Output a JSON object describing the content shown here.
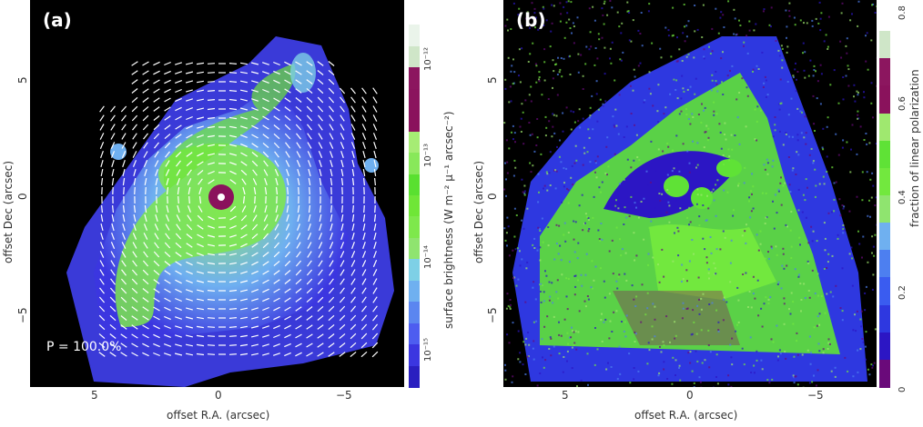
{
  "panel_a": {
    "label": "(a)",
    "p_note": "P = 100.0%",
    "xlabel": "offset R.A. (arcsec)",
    "ylabel": "offset Dec (arcsec)",
    "x_ticks": [
      "5",
      "0",
      "−5"
    ],
    "y_ticks": [
      "5",
      "0",
      "−5"
    ],
    "colorbar": {
      "title": "surface brightness (W m⁻² μ⁻¹ arcsec⁻²)",
      "ticks": [
        "10⁻¹²",
        "10⁻¹³",
        "10⁻¹⁴",
        "10⁻¹⁵"
      ],
      "colors": [
        "#2a1fc0",
        "#3b36e0",
        "#4d5df0",
        "#5b86f0",
        "#6fb0f0",
        "#7ed0e6",
        "#8fe46f",
        "#7ee84c",
        "#6fe637",
        "#59e030",
        "#88e85a",
        "#a6ec74",
        "#8a125c",
        "#8b145e",
        "#8c165f",
        "#cfe6c8",
        "#eaf4ea",
        "#ffffff"
      ]
    }
  },
  "panel_b": {
    "label": "(b)",
    "xlabel": "offset R.A. (arcsec)",
    "ylabel": "offset Dec (arcsec)",
    "x_ticks": [
      "5",
      "0",
      "−5"
    ],
    "y_ticks": [
      "5",
      "0",
      "−5"
    ],
    "colorbar": {
      "title": "fraction of linear polarization",
      "ticks": [
        "0",
        "0.2",
        "0.4",
        "0.6",
        "0.8"
      ],
      "colors": [
        "#6a0a7a",
        "#2c16c4",
        "#2e38e0",
        "#3a5cf0",
        "#4d7ff0",
        "#6fb0f0",
        "#8fe46f",
        "#72e83e",
        "#5fe236",
        "#9fe86f",
        "#8a125c",
        "#8c165f",
        "#cfe6c8",
        "#ffffff"
      ]
    }
  }
}
